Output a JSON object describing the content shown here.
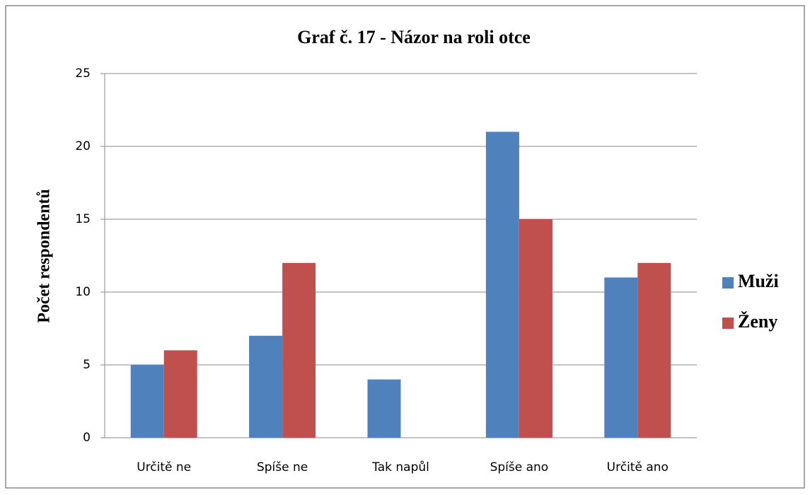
{
  "chart_data": {
    "type": "bar",
    "title": "Graf č. 17 - Názor na roli otce",
    "y_label": "Počet respondentů",
    "categories": [
      "Určitě ne",
      "Spíše ne",
      "Tak napůl",
      "Spíše ano",
      "Určitě ano"
    ],
    "series": [
      {
        "name": "Muži",
        "color": "#4f81bd",
        "values": [
          5,
          7,
          4,
          21,
          11
        ]
      },
      {
        "name": "Ženy",
        "color": "#c0504d",
        "values": [
          6,
          12,
          0,
          15,
          12
        ]
      }
    ],
    "ylim": [
      0,
      25
    ],
    "yticks": [
      0,
      5,
      10,
      15,
      20,
      25
    ],
    "grid": true,
    "legend": "right"
  }
}
